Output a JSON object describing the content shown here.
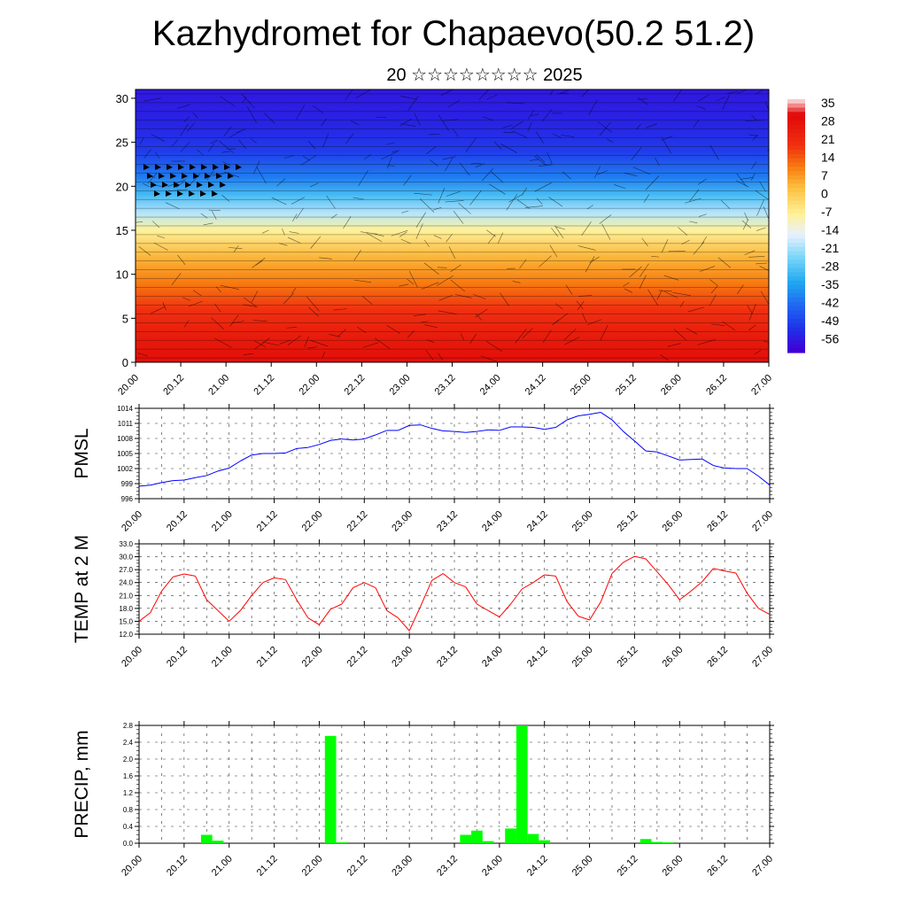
{
  "header": {
    "title": "Kazhydromet for Chapaevo(50.2 51.2)",
    "subtitle": "20 ☆☆☆☆☆☆☆☆ 2025"
  },
  "chart_data": [
    {
      "type": "heatmap",
      "title": "Kazhydromet for Chapaevo(50.2 51.2)",
      "subtitle": "20 ☆☆☆☆☆☆☆☆ 2025",
      "x_tick_labels": [
        "20.00",
        "20.12",
        "21.00",
        "21.12",
        "22.00",
        "22.12",
        "23.00",
        "23.12",
        "24.00",
        "24.12",
        "25.00",
        "25.12",
        "26.00",
        "26.12",
        "27.00"
      ],
      "y_ticks": [
        0,
        5,
        10,
        15,
        20,
        25,
        30
      ],
      "ylim": [
        0,
        31
      ],
      "colorbar_labels": [
        "35",
        "28",
        "21",
        "14",
        "7",
        "0",
        "-7",
        "-14",
        "-21",
        "-28",
        "-35",
        "-42",
        "-49",
        "-56"
      ],
      "colors": {
        "warm": "#e81010",
        "orange": "#f77b10",
        "yellow": "#fff29a",
        "pale": "#e8f0ff",
        "cyan": "#40b8f0",
        "blue": "#2030e8",
        "deep": "#4000d8"
      },
      "temperature_profile": [
        {
          "level": 0,
          "value": 28
        },
        {
          "level": 3,
          "value": 24
        },
        {
          "level": 6,
          "value": 18
        },
        {
          "level": 9,
          "value": 10
        },
        {
          "level": 12,
          "value": 3
        },
        {
          "level": 15,
          "value": -8
        },
        {
          "level": 17,
          "value": -20
        },
        {
          "level": 19,
          "value": -30
        },
        {
          "level": 21,
          "value": -40
        },
        {
          "level": 24,
          "value": -50
        },
        {
          "level": 27,
          "value": -54
        },
        {
          "level": 31,
          "value": -56
        }
      ]
    },
    {
      "type": "line",
      "ylabel": "PMSL",
      "x_tick_labels": [
        "20.00",
        "20.12",
        "21.00",
        "21.12",
        "22.00",
        "22.12",
        "23.00",
        "23.12",
        "24.00",
        "24.12",
        "25.00",
        "25.12",
        "26.00",
        "26.12",
        "27.00"
      ],
      "y_ticks": [
        "996",
        "999",
        "1002",
        "1005",
        "1008",
        "1011",
        "1014"
      ],
      "ylim": [
        996,
        1014
      ],
      "color": "#0000ff",
      "x": [
        0,
        3,
        6,
        9,
        12,
        15,
        18,
        21,
        24,
        27,
        30,
        33,
        36,
        39,
        42,
        45,
        48,
        51,
        54,
        57,
        60,
        63,
        66,
        69,
        72,
        75,
        78,
        81,
        84,
        87,
        90,
        93,
        96,
        99,
        102,
        105,
        108,
        111,
        114,
        117,
        120,
        123,
        126,
        129,
        132,
        135,
        138,
        141,
        144,
        147,
        150,
        153,
        156,
        159,
        162,
        165,
        168
      ],
      "values": [
        998.5,
        998.7,
        999.2,
        999.6,
        999.7,
        1000.2,
        1000.6,
        1001.5,
        1002.1,
        1003.5,
        1004.7,
        1005.0,
        1005.0,
        1005.1,
        1006.0,
        1006.2,
        1006.8,
        1007.6,
        1007.9,
        1007.7,
        1007.9,
        1008.7,
        1009.6,
        1009.6,
        1010.6,
        1010.7,
        1010.0,
        1009.5,
        1009.4,
        1009.2,
        1009.4,
        1009.7,
        1009.6,
        1010.3,
        1010.3,
        1010.2,
        1009.8,
        1010.2,
        1011.7,
        1012.5,
        1012.8,
        1013.2,
        1011.7,
        1009.4,
        1007.5,
        1005.5,
        1005.3,
        1004.5,
        1003.7,
        1003.8,
        1003.9,
        1002.6,
        1002.1,
        1002.0,
        1002.0,
        1000.5,
        998.7
      ]
    },
    {
      "type": "line",
      "ylabel": "TEMP at 2 M",
      "x_tick_labels": [
        "20.00",
        "20.12",
        "21.00",
        "21.12",
        "22.00",
        "22.12",
        "23.00",
        "23.12",
        "24.00",
        "24.12",
        "25.00",
        "25.12",
        "26.00",
        "26.12",
        "27.00"
      ],
      "y_ticks": [
        "12.0",
        "15.0",
        "18.0",
        "21.0",
        "24.0",
        "27.0",
        "30.0",
        "33.0"
      ],
      "ylim": [
        12,
        33
      ],
      "color": "#ff0000",
      "x": [
        0,
        3,
        6,
        9,
        12,
        15,
        18,
        21,
        24,
        27,
        30,
        33,
        36,
        39,
        42,
        45,
        48,
        51,
        54,
        57,
        60,
        63,
        66,
        69,
        72,
        75,
        78,
        81,
        84,
        87,
        90,
        93,
        96,
        99,
        102,
        105,
        108,
        111,
        114,
        117,
        120,
        123,
        126,
        129,
        132,
        135,
        138,
        141,
        144,
        147,
        150,
        153,
        156,
        159,
        162,
        165,
        168
      ],
      "values": [
        15.0,
        17.0,
        22.0,
        25.3,
        26.0,
        25.5,
        20.0,
        17.5,
        15.0,
        17.5,
        21.0,
        24.0,
        25.1,
        24.7,
        20.0,
        15.8,
        14.2,
        17.8,
        19.0,
        22.8,
        24.0,
        22.8,
        17.5,
        15.8,
        12.8,
        18.5,
        24.5,
        26.1,
        24.0,
        23.0,
        19.0,
        17.5,
        16.0,
        19.0,
        22.5,
        24.0,
        25.8,
        25.5,
        19.6,
        16.2,
        15.3,
        19.5,
        26.1,
        28.7,
        30.1,
        29.5,
        26.5,
        23.5,
        20.0,
        22.0,
        24.2,
        27.3,
        26.7,
        26.2,
        21.5,
        18.0,
        16.6
      ]
    },
    {
      "type": "bar",
      "ylabel": "PRECIP, mm",
      "x_tick_labels": [
        "20.00",
        "20.12",
        "21.00",
        "21.12",
        "22.00",
        "22.12",
        "23.00",
        "23.12",
        "24.00",
        "24.12",
        "25.00",
        "25.12",
        "26.00",
        "26.12",
        "27.00"
      ],
      "y_ticks": [
        "0.0",
        "0.4",
        "0.8",
        "1.2",
        "1.6",
        "2.0",
        "2.4",
        "2.8"
      ],
      "ylim": [
        0,
        2.8
      ],
      "color": "#00ff00",
      "bars": [
        {
          "x": 18,
          "value": 0.2
        },
        {
          "x": 21,
          "value": 0.06
        },
        {
          "x": 51,
          "value": 2.55
        },
        {
          "x": 54,
          "value": 0.02
        },
        {
          "x": 87,
          "value": 0.2
        },
        {
          "x": 90,
          "value": 0.3
        },
        {
          "x": 93,
          "value": 0.05
        },
        {
          "x": 99,
          "value": 0.35
        },
        {
          "x": 102,
          "value": 2.8
        },
        {
          "x": 105,
          "value": 0.22
        },
        {
          "x": 108,
          "value": 0.07
        },
        {
          "x": 135,
          "value": 0.1
        },
        {
          "x": 138,
          "value": 0.03
        },
        {
          "x": 141,
          "value": 0.02
        }
      ]
    }
  ]
}
